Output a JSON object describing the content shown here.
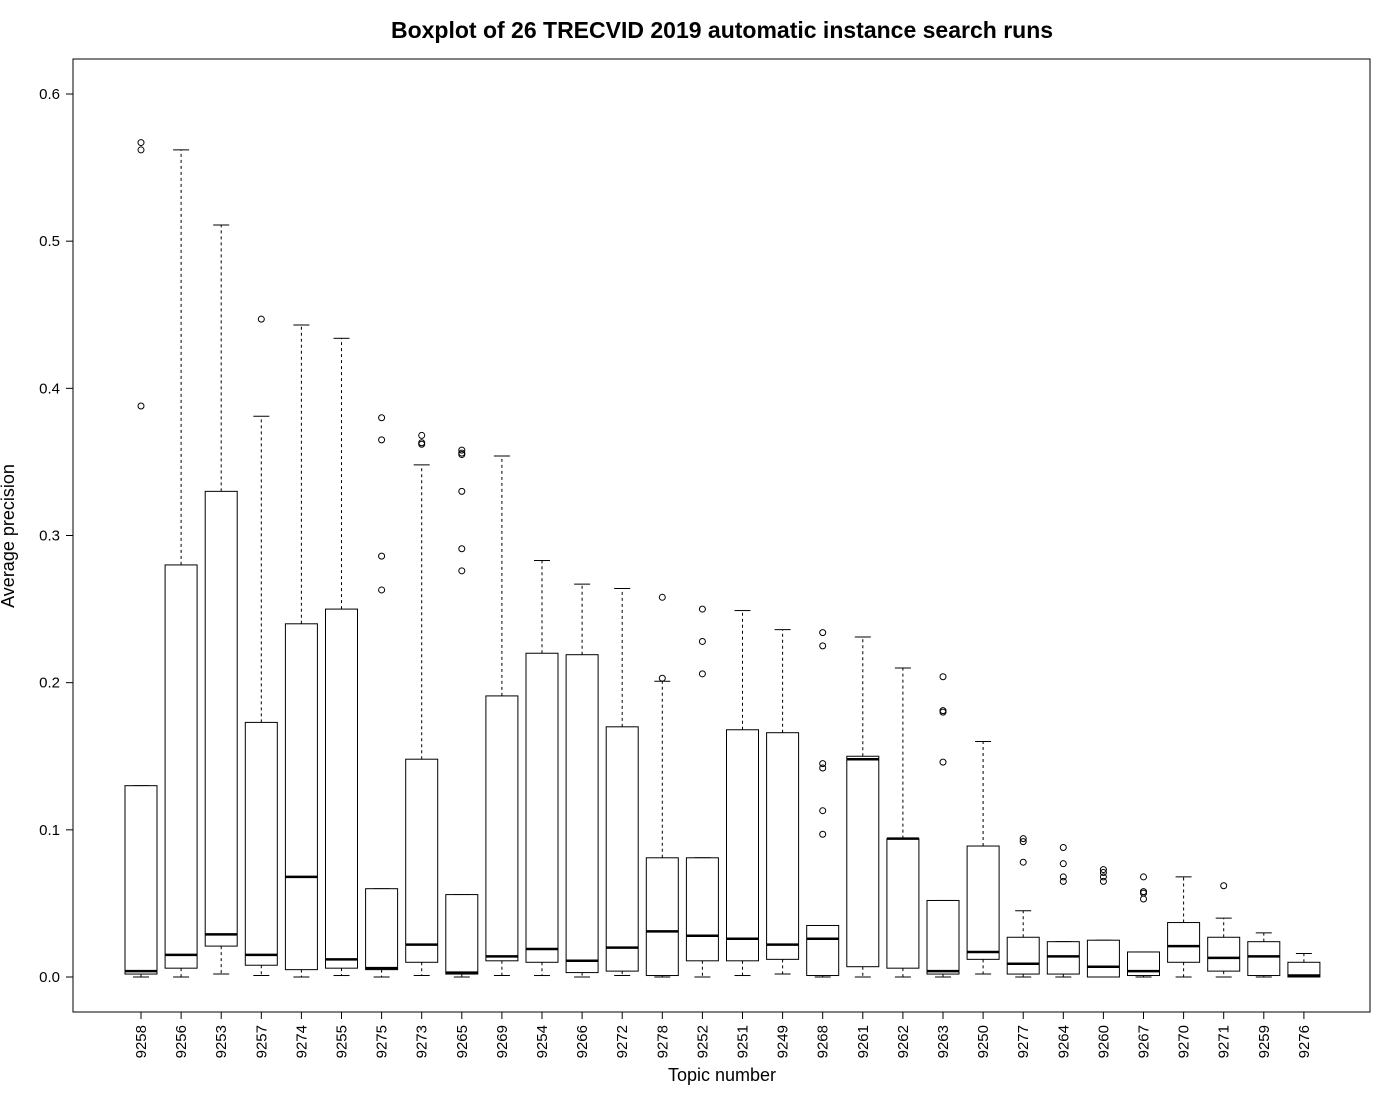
{
  "chart_data": {
    "type": "boxplot",
    "title": "Boxplot of 26 TRECVID 2019 automatic instance search runs",
    "xlabel": "Topic number",
    "ylabel": "Average precision",
    "ylim": [
      -0.024,
      0.624
    ],
    "yticks": [
      "0.0",
      "0.1",
      "0.2",
      "0.3",
      "0.4",
      "0.5",
      "0.6"
    ],
    "grid": false,
    "legend": "none",
    "colors": {
      "box_fill": "#ffffff",
      "stroke": "#000000",
      "median": "#000000"
    },
    "categories": [
      "9258",
      "9256",
      "9253",
      "9257",
      "9274",
      "9255",
      "9275",
      "9273",
      "9265",
      "9269",
      "9254",
      "9266",
      "9272",
      "9278",
      "9252",
      "9251",
      "9249",
      "9268",
      "9261",
      "9262",
      "9263",
      "9250",
      "9277",
      "9264",
      "9260",
      "9267",
      "9270",
      "9271",
      "9259",
      "9276"
    ],
    "boxes": [
      {
        "topic": "9258",
        "whisker_low": 0.0,
        "q1": 0.002,
        "median": 0.004,
        "q3": 0.13,
        "whisker_high": 0.13,
        "outliers": [
          0.388,
          0.562,
          0.567
        ]
      },
      {
        "topic": "9256",
        "whisker_low": 0.0,
        "q1": 0.006,
        "median": 0.015,
        "q3": 0.28,
        "whisker_high": 0.562,
        "outliers": []
      },
      {
        "topic": "9253",
        "whisker_low": 0.002,
        "q1": 0.021,
        "median": 0.029,
        "q3": 0.33,
        "whisker_high": 0.511,
        "outliers": []
      },
      {
        "topic": "9257",
        "whisker_low": 0.001,
        "q1": 0.008,
        "median": 0.015,
        "q3": 0.173,
        "whisker_high": 0.381,
        "outliers": [
          0.447
        ]
      },
      {
        "topic": "9274",
        "whisker_low": 0.0,
        "q1": 0.005,
        "median": 0.068,
        "q3": 0.24,
        "whisker_high": 0.443,
        "outliers": []
      },
      {
        "topic": "9255",
        "whisker_low": 0.001,
        "q1": 0.006,
        "median": 0.012,
        "q3": 0.25,
        "whisker_high": 0.434,
        "outliers": []
      },
      {
        "topic": "9275",
        "whisker_low": 0.0,
        "q1": 0.005,
        "median": 0.006,
        "q3": 0.06,
        "whisker_high": 0.06,
        "outliers": [
          0.263,
          0.286,
          0.365,
          0.38
        ]
      },
      {
        "topic": "9273",
        "whisker_low": 0.001,
        "q1": 0.01,
        "median": 0.022,
        "q3": 0.148,
        "whisker_high": 0.348,
        "outliers": [
          0.362,
          0.363,
          0.368
        ]
      },
      {
        "topic": "9265",
        "whisker_low": 0.0,
        "q1": 0.002,
        "median": 0.003,
        "q3": 0.056,
        "whisker_high": 0.056,
        "outliers": [
          0.276,
          0.291,
          0.33,
          0.355,
          0.356,
          0.358
        ]
      },
      {
        "topic": "9269",
        "whisker_low": 0.001,
        "q1": 0.011,
        "median": 0.014,
        "q3": 0.191,
        "whisker_high": 0.354,
        "outliers": []
      },
      {
        "topic": "9254",
        "whisker_low": 0.001,
        "q1": 0.01,
        "median": 0.019,
        "q3": 0.22,
        "whisker_high": 0.283,
        "outliers": []
      },
      {
        "topic": "9266",
        "whisker_low": 0.0,
        "q1": 0.003,
        "median": 0.011,
        "q3": 0.219,
        "whisker_high": 0.267,
        "outliers": []
      },
      {
        "topic": "9272",
        "whisker_low": 0.001,
        "q1": 0.004,
        "median": 0.02,
        "q3": 0.17,
        "whisker_high": 0.264,
        "outliers": []
      },
      {
        "topic": "9278",
        "whisker_low": 0.0,
        "q1": 0.001,
        "median": 0.031,
        "q3": 0.081,
        "whisker_high": 0.201,
        "outliers": [
          0.203,
          0.258
        ]
      },
      {
        "topic": "9252",
        "whisker_low": 0.0,
        "q1": 0.011,
        "median": 0.028,
        "q3": 0.081,
        "whisker_high": 0.081,
        "outliers": [
          0.206,
          0.228,
          0.25
        ]
      },
      {
        "topic": "9251",
        "whisker_low": 0.001,
        "q1": 0.011,
        "median": 0.026,
        "q3": 0.168,
        "whisker_high": 0.249,
        "outliers": []
      },
      {
        "topic": "9249",
        "whisker_low": 0.002,
        "q1": 0.012,
        "median": 0.022,
        "q3": 0.166,
        "whisker_high": 0.236,
        "outliers": []
      },
      {
        "topic": "9268",
        "whisker_low": 0.0,
        "q1": 0.001,
        "median": 0.026,
        "q3": 0.035,
        "whisker_high": 0.035,
        "outliers": [
          0.097,
          0.113,
          0.142,
          0.145,
          0.225,
          0.234
        ]
      },
      {
        "topic": "9261",
        "whisker_low": 0.0,
        "q1": 0.007,
        "median": 0.148,
        "q3": 0.15,
        "whisker_high": 0.231,
        "outliers": []
      },
      {
        "topic": "9262",
        "whisker_low": 0.0,
        "q1": 0.006,
        "median": 0.094,
        "q3": 0.094,
        "whisker_high": 0.21,
        "outliers": []
      },
      {
        "topic": "9263",
        "whisker_low": 0.0,
        "q1": 0.002,
        "median": 0.004,
        "q3": 0.052,
        "whisker_high": 0.052,
        "outliers": [
          0.146,
          0.18,
          0.181,
          0.204
        ]
      },
      {
        "topic": "9250",
        "whisker_low": 0.002,
        "q1": 0.012,
        "median": 0.017,
        "q3": 0.089,
        "whisker_high": 0.16,
        "outliers": []
      },
      {
        "topic": "9277",
        "whisker_low": 0.0,
        "q1": 0.002,
        "median": 0.009,
        "q3": 0.027,
        "whisker_high": 0.045,
        "outliers": [
          0.078,
          0.092,
          0.094
        ]
      },
      {
        "topic": "9264",
        "whisker_low": 0.0,
        "q1": 0.002,
        "median": 0.014,
        "q3": 0.024,
        "whisker_high": 0.024,
        "outliers": [
          0.065,
          0.068,
          0.077,
          0.088
        ]
      },
      {
        "topic": "9260",
        "whisker_low": 0.0,
        "q1": 0.0,
        "median": 0.007,
        "q3": 0.025,
        "whisker_high": 0.025,
        "outliers": [
          0.065,
          0.068,
          0.071,
          0.073
        ]
      },
      {
        "topic": "9267",
        "whisker_low": 0.0,
        "q1": 0.001,
        "median": 0.004,
        "q3": 0.017,
        "whisker_high": 0.017,
        "outliers": [
          0.053,
          0.057,
          0.058,
          0.068
        ]
      },
      {
        "topic": "9270",
        "whisker_low": 0.0,
        "q1": 0.01,
        "median": 0.021,
        "q3": 0.037,
        "whisker_high": 0.068,
        "outliers": []
      },
      {
        "topic": "9271",
        "whisker_low": 0.0,
        "q1": 0.004,
        "median": 0.013,
        "q3": 0.027,
        "whisker_high": 0.04,
        "outliers": [
          0.062
        ]
      },
      {
        "topic": "9259",
        "whisker_low": 0.0,
        "q1": 0.001,
        "median": 0.014,
        "q3": 0.024,
        "whisker_high": 0.03,
        "outliers": []
      },
      {
        "topic": "9276",
        "whisker_low": 0.0,
        "q1": 0.0,
        "median": 0.001,
        "q3": 0.01,
        "whisker_high": 0.016,
        "outliers": []
      }
    ]
  }
}
